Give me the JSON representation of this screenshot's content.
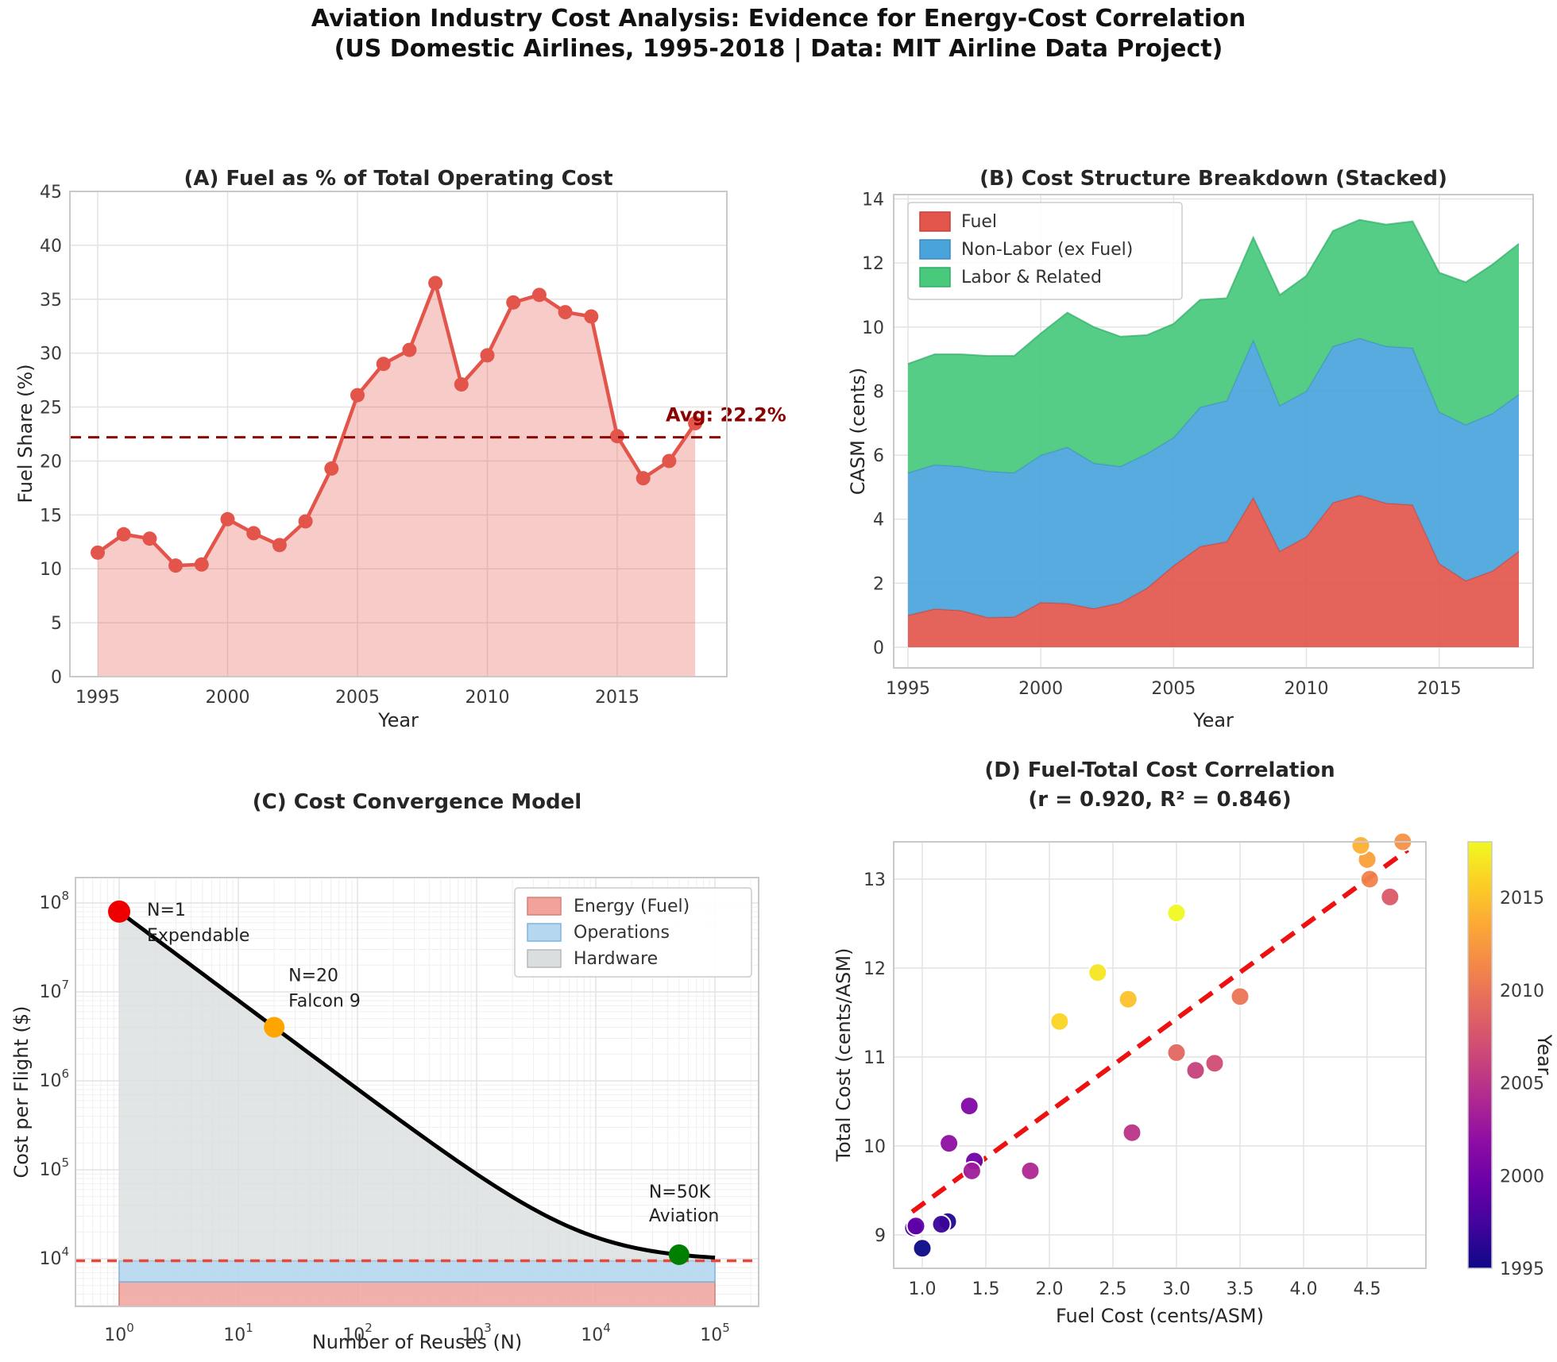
{
  "figure": {
    "suptitle_line1": "Aviation Industry Cost Analysis: Evidence for Energy-Cost Correlation",
    "suptitle_line2": "(US Domestic Airlines, 1995-2018 | Data: MIT Airline Data Project)"
  },
  "colors": {
    "panel_a_line": "#e3554a",
    "panel_a_fill": "rgba(227,85,74,0.30)",
    "panel_a_avg_line": "#8b0000",
    "fuel": "#e2564c",
    "non_labor": "#4aa4dc",
    "labor": "#48c97c",
    "energy_band": "#f0a29b",
    "operations_band": "#b5d7f0",
    "hardware_band": "#dbdedf",
    "curve": "#000000",
    "floor_dash": "#e8473c",
    "trend_line": "#ee1111",
    "point_red": "#ee0000",
    "point_orange": "#ffa500",
    "point_green": "#008000"
  },
  "chart_data": [
    {
      "panel": "A",
      "type": "line",
      "title": "(A) Fuel as % of Total Operating Cost",
      "xlabel": "Year",
      "ylabel": "Fuel Share (%)",
      "ylim": [
        0,
        45
      ],
      "yticks": [
        0,
        5,
        10,
        15,
        20,
        25,
        30,
        35,
        40,
        45
      ],
      "xticks": [
        1995,
        2000,
        2005,
        2010,
        2015
      ],
      "years": [
        1995,
        1996,
        1997,
        1998,
        1999,
        2000,
        2001,
        2002,
        2003,
        2004,
        2005,
        2006,
        2007,
        2008,
        2009,
        2010,
        2011,
        2012,
        2013,
        2014,
        2015,
        2016,
        2017,
        2018
      ],
      "values": [
        11.5,
        13.2,
        12.8,
        10.3,
        10.4,
        14.6,
        13.3,
        12.2,
        14.4,
        19.3,
        26.1,
        29.0,
        30.3,
        36.5,
        27.1,
        29.8,
        34.7,
        35.4,
        33.8,
        33.4,
        22.3,
        18.4,
        20.0,
        23.5
      ],
      "avg_line": {
        "value": 22.2,
        "label": "Avg: 22.2%"
      },
      "grid": true
    },
    {
      "panel": "B",
      "type": "area",
      "title": "(B) Cost Structure Breakdown (Stacked)",
      "xlabel": "Year",
      "ylabel": "CASM (cents)",
      "ylim": [
        0,
        14
      ],
      "yticks": [
        0,
        2,
        4,
        6,
        8,
        10,
        12,
        14
      ],
      "xticks": [
        1995,
        2000,
        2005,
        2010,
        2015
      ],
      "years": [
        1995,
        1996,
        1997,
        1998,
        1999,
        2000,
        2001,
        2002,
        2003,
        2004,
        2005,
        2006,
        2007,
        2008,
        2009,
        2010,
        2011,
        2012,
        2013,
        2014,
        2015,
        2016,
        2017,
        2018
      ],
      "series": [
        {
          "name": "Fuel",
          "values": [
            1.0,
            1.2,
            1.15,
            0.93,
            0.95,
            1.4,
            1.37,
            1.21,
            1.39,
            1.85,
            2.55,
            3.15,
            3.3,
            4.68,
            3.0,
            3.45,
            4.52,
            4.75,
            4.5,
            4.45,
            2.62,
            2.08,
            2.38,
            3.0
          ]
        },
        {
          "name": "Non-Labor (ex Fuel)",
          "values": [
            4.45,
            4.5,
            4.5,
            4.57,
            4.5,
            4.6,
            4.88,
            4.54,
            4.26,
            4.2,
            4.0,
            4.35,
            4.4,
            4.92,
            4.55,
            4.55,
            4.88,
            4.9,
            4.9,
            4.9,
            4.73,
            4.87,
            4.92,
            4.9
          ]
        },
        {
          "name": "Labor & Related",
          "values": [
            3.4,
            3.45,
            3.5,
            3.6,
            3.65,
            3.8,
            4.2,
            4.25,
            4.05,
            3.7,
            3.55,
            3.35,
            3.2,
            3.2,
            3.45,
            3.6,
            3.6,
            3.7,
            3.8,
            3.95,
            4.35,
            4.45,
            4.65,
            4.7
          ]
        }
      ],
      "legend_position": "upper left",
      "grid": true
    },
    {
      "panel": "C",
      "type": "line",
      "title": "(C) Cost Convergence Model",
      "xlabel": "Number of Reuses (N)",
      "ylabel": "Cost per Flight ($)",
      "x_scale": "log",
      "y_scale": "log",
      "xlim_exp": [
        0,
        5
      ],
      "ylim_exp": [
        4,
        8
      ],
      "model": {
        "hardware_cost_n1": 80000000,
        "energy_cost": 5500,
        "operations_cost": 4000,
        "cost_floor": 9500
      },
      "bands": [
        {
          "name": "Energy (Fuel)"
        },
        {
          "name": "Operations"
        },
        {
          "name": "Hardware"
        }
      ],
      "points": [
        {
          "n": 1,
          "label": "N=1",
          "sublabel": "Expendable"
        },
        {
          "n": 20,
          "label": "N=20",
          "sublabel": "Falcon 9"
        },
        {
          "n": 50000,
          "label": "N=50K",
          "sublabel": "Aviation"
        }
      ],
      "legend_position": "upper right",
      "grid": "log-minor"
    },
    {
      "panel": "D",
      "type": "scatter",
      "title_line1": "(D) Fuel-Total Cost Correlation",
      "title_line2": "(r = 0.920, R² = 0.846)",
      "xlabel": "Fuel Cost (cents/ASM)",
      "ylabel": "Total Cost (cents/ASM)",
      "colorbar_label": "Year",
      "colorbar_ticks": [
        1995,
        2000,
        2005,
        2010,
        2015
      ],
      "year_range": [
        1995,
        2018
      ],
      "xticks": [
        1.0,
        1.5,
        2.0,
        2.5,
        3.0,
        3.5,
        4.0,
        4.5
      ],
      "yticks": [
        9,
        10,
        11,
        12,
        13
      ],
      "stats": {
        "r": 0.92,
        "r_squared": 0.846
      },
      "trend": {
        "x1": 0.92,
        "y1": 9.26,
        "x2": 4.82,
        "y2": 13.33
      },
      "points": [
        {
          "year": 1995,
          "x": 1.0,
          "y": 8.85
        },
        {
          "year": 1996,
          "x": 1.2,
          "y": 9.15
        },
        {
          "year": 1997,
          "x": 1.15,
          "y": 9.12
        },
        {
          "year": 1998,
          "x": 0.93,
          "y": 9.08
        },
        {
          "year": 1999,
          "x": 0.95,
          "y": 9.1
        },
        {
          "year": 2000,
          "x": 1.41,
          "y": 9.83
        },
        {
          "year": 2001,
          "x": 1.37,
          "y": 10.45
        },
        {
          "year": 2002,
          "x": 1.21,
          "y": 10.03
        },
        {
          "year": 2003,
          "x": 1.39,
          "y": 9.72
        },
        {
          "year": 2004,
          "x": 1.85,
          "y": 9.72
        },
        {
          "year": 2005,
          "x": 2.65,
          "y": 10.15
        },
        {
          "year": 2006,
          "x": 3.15,
          "y": 10.85
        },
        {
          "year": 2007,
          "x": 3.3,
          "y": 10.93
        },
        {
          "year": 2008,
          "x": 4.68,
          "y": 12.8
        },
        {
          "year": 2009,
          "x": 3.0,
          "y": 11.05
        },
        {
          "year": 2010,
          "x": 3.5,
          "y": 11.68
        },
        {
          "year": 2011,
          "x": 4.52,
          "y": 13.0
        },
        {
          "year": 2012,
          "x": 4.78,
          "y": 13.42
        },
        {
          "year": 2013,
          "x": 4.5,
          "y": 13.22
        },
        {
          "year": 2014,
          "x": 4.45,
          "y": 13.38
        },
        {
          "year": 2015,
          "x": 2.62,
          "y": 11.65
        },
        {
          "year": 2016,
          "x": 2.08,
          "y": 11.4
        },
        {
          "year": 2017,
          "x": 2.38,
          "y": 11.95
        },
        {
          "year": 2018,
          "x": 3.0,
          "y": 12.62
        }
      ]
    }
  ]
}
